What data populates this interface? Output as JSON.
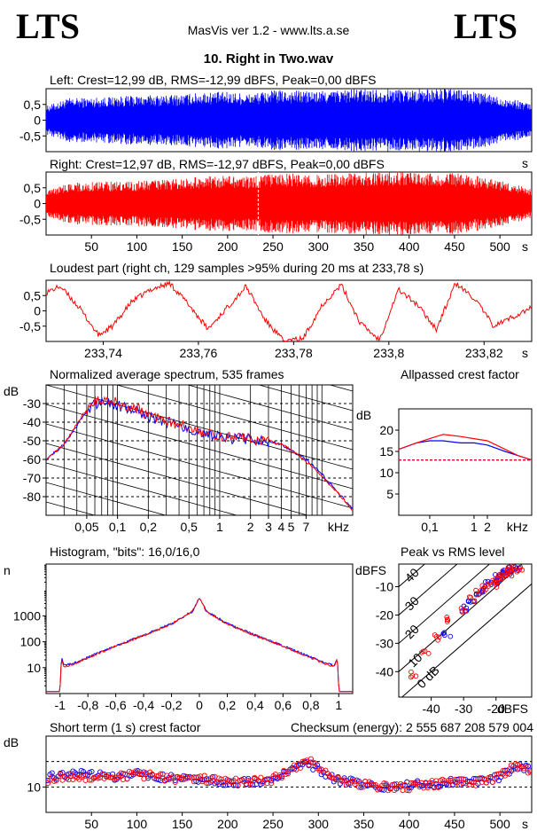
{
  "header": {
    "logo_left": "LTS",
    "logo_right": "LTS",
    "app_title": "MasVis ver 1.2 - www.lts.a.se",
    "file_title": "10. Right in Two.wav"
  },
  "colors": {
    "left": "#0000ff",
    "right": "#ff0000",
    "grid": "#000000",
    "background": "#ffffff"
  },
  "chart_data": [
    {
      "id": "left-waveform",
      "type": "area",
      "title": "Left: Crest=12,99 dB, RMS=-12,99 dBFS, Peak=0,00 dBFS",
      "xlabel": "s",
      "xlim": [
        0,
        535
      ],
      "ylim": [
        -1,
        1
      ],
      "yticks": [
        0.5,
        0,
        -0.5
      ],
      "ytick_labels": [
        "0,5",
        "0",
        "-0,5"
      ],
      "series": [
        {
          "color": "#0000ff",
          "x": [
            0,
            25,
            50,
            75,
            100,
            125,
            150,
            175,
            200,
            225,
            250,
            275,
            300,
            325,
            350,
            375,
            400,
            425,
            450,
            475,
            500,
            525,
            535
          ],
          "envelope": [
            0.45,
            0.7,
            0.72,
            0.75,
            0.78,
            0.8,
            0.82,
            0.9,
            0.9,
            0.85,
            0.95,
            0.95,
            0.92,
            0.98,
            1,
            1,
            1,
            1,
            1,
            0.9,
            0.75,
            0.6,
            0.5
          ]
        }
      ]
    },
    {
      "id": "right-waveform",
      "type": "area",
      "title": "Right: Crest=12,97 dB, RMS=-12,97 dBFS, Peak=0,00 dBFS",
      "xlabel": "s",
      "xlim": [
        0,
        535
      ],
      "ylim": [
        -1,
        1
      ],
      "yticks": [
        0.5,
        0,
        -0.5
      ],
      "ytick_labels": [
        "0,5",
        "0",
        "-0,5"
      ],
      "xticks": [
        50,
        100,
        150,
        200,
        250,
        300,
        350,
        400,
        450,
        500
      ],
      "xtick_labels": [
        "50",
        "100",
        "150",
        "200",
        "250",
        "300",
        "350",
        "400",
        "450",
        "500"
      ],
      "marker_x": 233.78,
      "series": [
        {
          "color": "#ff0000",
          "x": [
            0,
            25,
            50,
            75,
            100,
            125,
            150,
            175,
            200,
            225,
            250,
            275,
            300,
            325,
            350,
            375,
            400,
            425,
            450,
            475,
            500,
            525,
            535
          ],
          "envelope": [
            0.4,
            0.65,
            0.68,
            0.7,
            0.72,
            0.75,
            0.8,
            0.88,
            0.88,
            0.85,
            0.95,
            0.95,
            0.92,
            0.98,
            1,
            1,
            1,
            1,
            1,
            0.88,
            0.72,
            0.55,
            0.45
          ]
        }
      ]
    },
    {
      "id": "loudest-part",
      "type": "line",
      "title": "Loudest part (right ch, 129 samples >95% during 20 ms at 233,78 s)",
      "xlabel": "s",
      "xlim": [
        233.728,
        233.83
      ],
      "ylim": [
        -1,
        1
      ],
      "yticks": [
        0.5,
        0,
        -0.5
      ],
      "ytick_labels": [
        "0,5",
        "0",
        "-0,5"
      ],
      "xticks": [
        233.74,
        233.76,
        233.78,
        233.8,
        233.82
      ],
      "xtick_labels": [
        "233,74",
        "233,76",
        "233,78",
        "233,8",
        "233,82"
      ],
      "series": [
        {
          "color": "#ff0000",
          "x": [
            233.728,
            233.731,
            233.735,
            233.739,
            233.742,
            233.746,
            233.75,
            233.754,
            233.758,
            233.762,
            233.766,
            233.77,
            233.774,
            233.778,
            233.782,
            233.786,
            233.79,
            233.794,
            233.798,
            233.802,
            233.806,
            233.81,
            233.814,
            233.818,
            233.822,
            233.826,
            233.83
          ],
          "y": [
            0.6,
            0.8,
            0.1,
            -0.8,
            -0.5,
            0.3,
            0.7,
            0.9,
            0.2,
            -0.6,
            0.1,
            0.8,
            -0.3,
            -1,
            -0.9,
            0.2,
            0.85,
            -0.4,
            -0.95,
            0.7,
            0.2,
            -0.6,
            0.9,
            0.4,
            -0.5,
            -0.2,
            0.1
          ]
        }
      ]
    },
    {
      "id": "average-spectrum",
      "type": "line",
      "title": "Normalized average spectrum, 535 frames",
      "ylabel": "dB",
      "xlabel": "kHz",
      "xscale": "log",
      "xlim": [
        0.02,
        20
      ],
      "ylim": [
        -90,
        -20
      ],
      "yticks": [
        -30,
        -40,
        -50,
        -60,
        -70,
        -80
      ],
      "ytick_labels": [
        "-30",
        "-40",
        "-50",
        "-60",
        "-70",
        "-80"
      ],
      "xticks": [
        0.05,
        0.1,
        0.2,
        0.5,
        1,
        2,
        3,
        4,
        5,
        7
      ],
      "xtick_labels": [
        "0,05",
        "0,1",
        "0,2",
        "0,5",
        "1",
        "2",
        "3",
        "4",
        "5",
        "7"
      ],
      "series": [
        {
          "color": "#0000ff",
          "x": [
            0.02,
            0.03,
            0.04,
            0.05,
            0.06,
            0.08,
            0.1,
            0.15,
            0.2,
            0.3,
            0.5,
            0.7,
            1,
            1.5,
            2,
            3,
            4,
            5,
            7,
            10,
            15,
            20
          ],
          "y": [
            -60,
            -52,
            -42,
            -34,
            -30,
            -29,
            -31,
            -33,
            -37,
            -40,
            -44,
            -47,
            -48,
            -49,
            -49,
            -50,
            -52,
            -55,
            -60,
            -68,
            -79,
            -87
          ]
        },
        {
          "color": "#ff0000",
          "x": [
            0.02,
            0.03,
            0.04,
            0.05,
            0.06,
            0.08,
            0.1,
            0.15,
            0.2,
            0.3,
            0.5,
            0.7,
            1,
            1.5,
            2,
            3,
            4,
            5,
            7,
            10,
            15,
            20
          ],
          "y": [
            -60,
            -52,
            -41,
            -33,
            -28,
            -27,
            -30,
            -32,
            -36,
            -39,
            -43,
            -46,
            -48,
            -48,
            -49,
            -50,
            -52,
            -55,
            -61,
            -69,
            -79,
            -88
          ]
        }
      ]
    },
    {
      "id": "allpassed-crest",
      "type": "line",
      "title": "Allpassed crest factor",
      "ylabel": "dB",
      "xlabel": "kHz",
      "xscale": "log",
      "xlim": [
        0.02,
        20
      ],
      "ylim": [
        0,
        25
      ],
      "yticks": [
        20,
        15,
        10,
        5
      ],
      "ytick_labels": [
        "20",
        "15",
        "10",
        "5"
      ],
      "xticks": [
        0.1,
        1,
        2
      ],
      "xtick_labels": [
        "0,1",
        "1",
        "2"
      ],
      "series": [
        {
          "color": "#0000ff",
          "x": [
            0.02,
            0.05,
            0.1,
            0.2,
            0.5,
            1,
            2,
            5,
            10,
            20
          ],
          "y": [
            15.5,
            17,
            17.5,
            17.5,
            17,
            17,
            16.5,
            15,
            14,
            13
          ]
        },
        {
          "color": "#ff0000",
          "x": [
            0.02,
            0.05,
            0.1,
            0.2,
            0.5,
            1,
            2,
            5,
            10,
            20
          ],
          "y": [
            15.5,
            17,
            18,
            19,
            18.5,
            18,
            17.5,
            15.5,
            14,
            13
          ]
        },
        {
          "color": "#0000ff",
          "style": "dashed",
          "x": [
            0.02,
            20
          ],
          "y": [
            12.99,
            12.99
          ]
        },
        {
          "color": "#ff0000",
          "style": "dashed",
          "x": [
            0.02,
            20
          ],
          "y": [
            12.97,
            12.97
          ]
        }
      ]
    },
    {
      "id": "histogram",
      "type": "line",
      "title": "Histogram, \"bits\": 16,0/16,0",
      "ylabel": "n",
      "yscale": "log",
      "xlim": [
        -1.1,
        1.1
      ],
      "ylim": [
        1,
        100000
      ],
      "yticks": [
        1000,
        100,
        10
      ],
      "ytick_labels": [
        "1000",
        "100",
        "10"
      ],
      "xticks": [
        -1,
        -0.8,
        -0.6,
        -0.4,
        -0.2,
        0,
        0.2,
        0.4,
        0.6,
        0.8,
        1
      ],
      "xtick_labels": [
        "-1",
        "-0,8",
        "-0,6",
        "-0,4",
        "-0,2",
        "0",
        "0,2",
        "0,4",
        "0,6",
        "0,8",
        "1"
      ],
      "series": [
        {
          "color": "#0000ff",
          "x": [
            -1,
            -0.99,
            -0.97,
            -0.9,
            -0.8,
            -0.6,
            -0.4,
            -0.2,
            -0.05,
            0,
            0.05,
            0.2,
            0.4,
            0.6,
            0.8,
            0.9,
            0.97,
            0.99,
            1
          ],
          "y": [
            1.5,
            25,
            12,
            15,
            25,
            70,
            180,
            500,
            1500,
            5000,
            1500,
            500,
            180,
            70,
            25,
            15,
            12,
            25,
            1.5
          ]
        },
        {
          "color": "#ff0000",
          "x": [
            -1,
            -0.99,
            -0.97,
            -0.9,
            -0.8,
            -0.6,
            -0.4,
            -0.2,
            -0.05,
            0,
            0.05,
            0.2,
            0.4,
            0.6,
            0.8,
            0.9,
            0.97,
            0.99,
            1
          ],
          "y": [
            1.5,
            22,
            11,
            14,
            24,
            68,
            175,
            490,
            1480,
            4900,
            1480,
            490,
            175,
            68,
            24,
            14,
            11,
            22,
            1.5
          ]
        }
      ]
    },
    {
      "id": "peak-vs-rms",
      "type": "scatter",
      "title": "Peak vs RMS level",
      "ylabel": "dBFS",
      "xlabel": "dBFS",
      "xlim": [
        -50,
        -9
      ],
      "ylim": [
        -49,
        -2
      ],
      "yticks": [
        -10,
        -20,
        -30,
        -40
      ],
      "ytick_labels": [
        "-10",
        "-20",
        "-30",
        "-40"
      ],
      "xticks": [
        -40,
        -30,
        -20
      ],
      "xtick_labels": [
        "-40",
        "-30",
        "-20"
      ],
      "diagonal_labels": [
        "40",
        "30",
        "20",
        "10",
        "0 dB"
      ],
      "series": [
        {
          "color": "#0000ff",
          "x": [
            -35,
            -30,
            -28,
            -25,
            -24,
            -22,
            -20,
            -19,
            -18,
            -17,
            -16,
            -15,
            -14
          ],
          "y": [
            -27,
            -18,
            -15,
            -12,
            -11,
            -9,
            -8,
            -7,
            -6,
            -5,
            -5,
            -4,
            -4
          ]
        },
        {
          "color": "#ff0000",
          "x": [
            -45,
            -42,
            -38,
            -34,
            -30,
            -27,
            -25,
            -23,
            -21,
            -20,
            -19,
            -18,
            -17,
            -16,
            -15,
            -14,
            -13
          ],
          "y": [
            -41,
            -34,
            -28,
            -22,
            -18,
            -14,
            -12,
            -10,
            -9,
            -8,
            -7,
            -6,
            -5,
            -5,
            -4,
            -4,
            -4
          ]
        }
      ]
    },
    {
      "id": "short-term-crest",
      "type": "scatter",
      "title": "Short term (1 s) crest factor",
      "subtitle": "Checksum (energy):  2 555 687 208 579 004",
      "ylabel": "dB",
      "xlabel": "s",
      "xlim": [
        0,
        535
      ],
      "ylim": [
        0,
        30
      ],
      "yticks": [
        10
      ],
      "ytick_labels": [
        "10"
      ],
      "ref_lines": [
        20,
        10
      ],
      "xticks": [
        50,
        100,
        150,
        200,
        250,
        300,
        350,
        400,
        450,
        500
      ],
      "xtick_labels": [
        "50",
        "100",
        "150",
        "200",
        "250",
        "300",
        "350",
        "400",
        "450",
        "500"
      ],
      "series": [
        {
          "color": "#0000ff",
          "x": [
            5,
            25,
            50,
            75,
            100,
            125,
            150,
            175,
            200,
            225,
            250,
            265,
            280,
            290,
            300,
            320,
            350,
            375,
            400,
            425,
            450,
            475,
            500,
            510,
            520,
            530
          ],
          "y": [
            14,
            15,
            15,
            14,
            15,
            14,
            14,
            13,
            12,
            12,
            13,
            15,
            18,
            19,
            17,
            13,
            11,
            10,
            11,
            11,
            12,
            12,
            14,
            16,
            18,
            17
          ]
        },
        {
          "color": "#ff0000",
          "x": [
            5,
            25,
            50,
            75,
            100,
            125,
            150,
            175,
            200,
            225,
            250,
            265,
            280,
            290,
            300,
            320,
            350,
            375,
            400,
            425,
            450,
            475,
            500,
            510,
            520,
            530
          ],
          "y": [
            13,
            14,
            14,
            14,
            15,
            14,
            13,
            13,
            12,
            12,
            13,
            16,
            18,
            20,
            18,
            13,
            11,
            10,
            10,
            11,
            12,
            12,
            14,
            17,
            19,
            17
          ]
        }
      ]
    }
  ]
}
